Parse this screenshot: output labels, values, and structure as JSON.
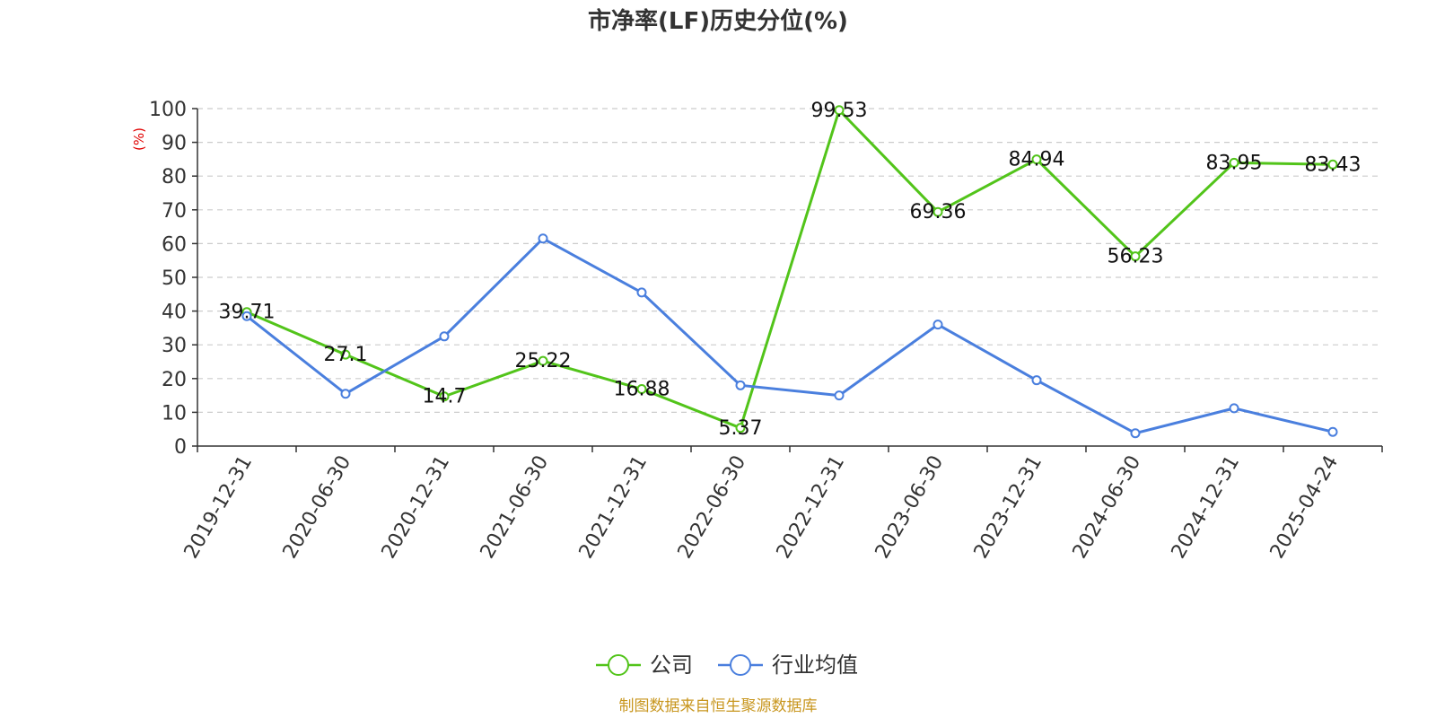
{
  "chart_data": {
    "type": "line",
    "title": "市净率(LF)历史分位(%)",
    "ylabel": "(%)",
    "ylim": [
      0,
      100
    ],
    "yticks": [
      0,
      10,
      20,
      30,
      40,
      50,
      60,
      70,
      80,
      90,
      100
    ],
    "grid": true,
    "legend_position": "bottom",
    "categories": [
      "2019-12-31",
      "2020-06-30",
      "2020-12-31",
      "2021-06-30",
      "2021-12-31",
      "2022-06-30",
      "2022-12-31",
      "2023-06-30",
      "2023-12-31",
      "2024-06-30",
      "2024-12-31",
      "2025-04-24"
    ],
    "series": [
      {
        "name": "公司",
        "color": "#52c41a",
        "show_labels": true,
        "values": [
          39.71,
          27.1,
          14.7,
          25.22,
          16.88,
          5.37,
          99.53,
          69.36,
          84.94,
          56.23,
          83.95,
          83.43
        ],
        "labels": [
          "39.71",
          "27.1",
          "14.7",
          "25.22",
          "16.88",
          "5.37",
          "99.53",
          "69.36",
          "84.94",
          "56.23",
          "83.95",
          "83.43"
        ]
      },
      {
        "name": "行业均值",
        "color": "#4a7fde",
        "show_labels": false,
        "values": [
          38.5,
          15.5,
          32.5,
          61.5,
          45.5,
          18.0,
          15.0,
          36.0,
          19.5,
          3.8,
          11.2,
          4.2
        ]
      }
    ],
    "source": "制图数据来自恒生聚源数据库"
  }
}
